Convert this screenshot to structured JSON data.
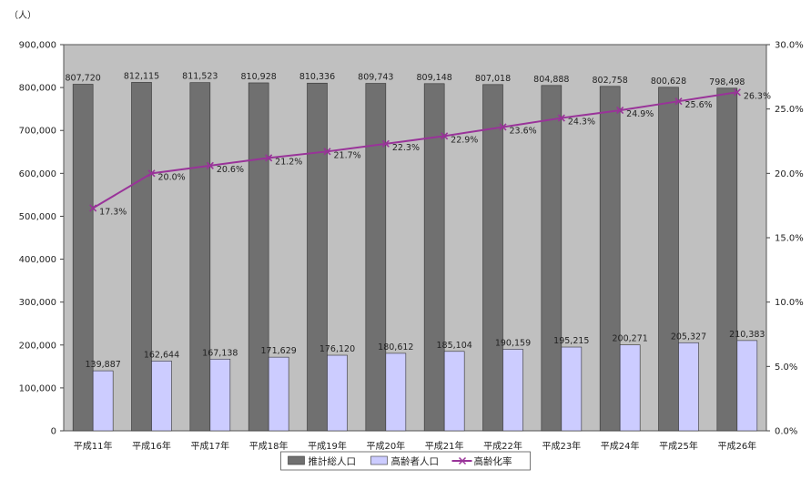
{
  "chart_data": {
    "type": "bar",
    "y_unit_label": "（人）",
    "categories": [
      "平成11年",
      "平成16年",
      "平成17年",
      "平成18年",
      "平成19年",
      "平成20年",
      "平成21年",
      "平成22年",
      "平成23年",
      "平成24年",
      "平成25年",
      "平成26年"
    ],
    "ylim": [
      0,
      900000
    ],
    "y2lim": [
      0,
      30
    ],
    "y_ticks": [
      "0",
      "100,000",
      "200,000",
      "300,000",
      "400,000",
      "500,000",
      "600,000",
      "700,000",
      "800,000",
      "900,000"
    ],
    "y2_ticks": [
      "0.0%",
      "5.0%",
      "10.0%",
      "15.0%",
      "20.0%",
      "25.0%",
      "30.0%"
    ],
    "grid": false,
    "legend_position": "bottom",
    "series": [
      {
        "name": "推計総人口",
        "kind": "bar",
        "axis": "left",
        "color": "#707070",
        "values": [
          807720,
          812115,
          811523,
          810928,
          810336,
          809743,
          809148,
          807018,
          804888,
          802758,
          800628,
          798498
        ],
        "labels": [
          "807,720",
          "812,115",
          "811,523",
          "810,928",
          "810,336",
          "809,743",
          "809,148",
          "807,018",
          "804,888",
          "802,758",
          "800,628",
          "798,498"
        ]
      },
      {
        "name": "高齢者人口",
        "kind": "bar",
        "axis": "left",
        "color": "#ccccff",
        "values": [
          139887,
          162644,
          167138,
          171629,
          176120,
          180612,
          185104,
          190159,
          195215,
          200271,
          205327,
          210383
        ],
        "labels": [
          "139,887",
          "162,644",
          "167,138",
          "171,629",
          "176,120",
          "180,612",
          "185,104",
          "190,159",
          "195,215",
          "200,271",
          "205,327",
          "210,383"
        ]
      },
      {
        "name": "高齢化率",
        "kind": "line",
        "axis": "right",
        "color": "#993399",
        "values": [
          17.3,
          20.0,
          20.6,
          21.2,
          21.7,
          22.3,
          22.9,
          23.6,
          24.3,
          24.9,
          25.6,
          26.3
        ],
        "labels": [
          "17.3%",
          "20.0%",
          "20.6%",
          "21.2%",
          "21.7%",
          "22.3%",
          "22.9%",
          "23.6%",
          "24.3%",
          "24.9%",
          "25.6%",
          "26.3%"
        ]
      }
    ]
  }
}
